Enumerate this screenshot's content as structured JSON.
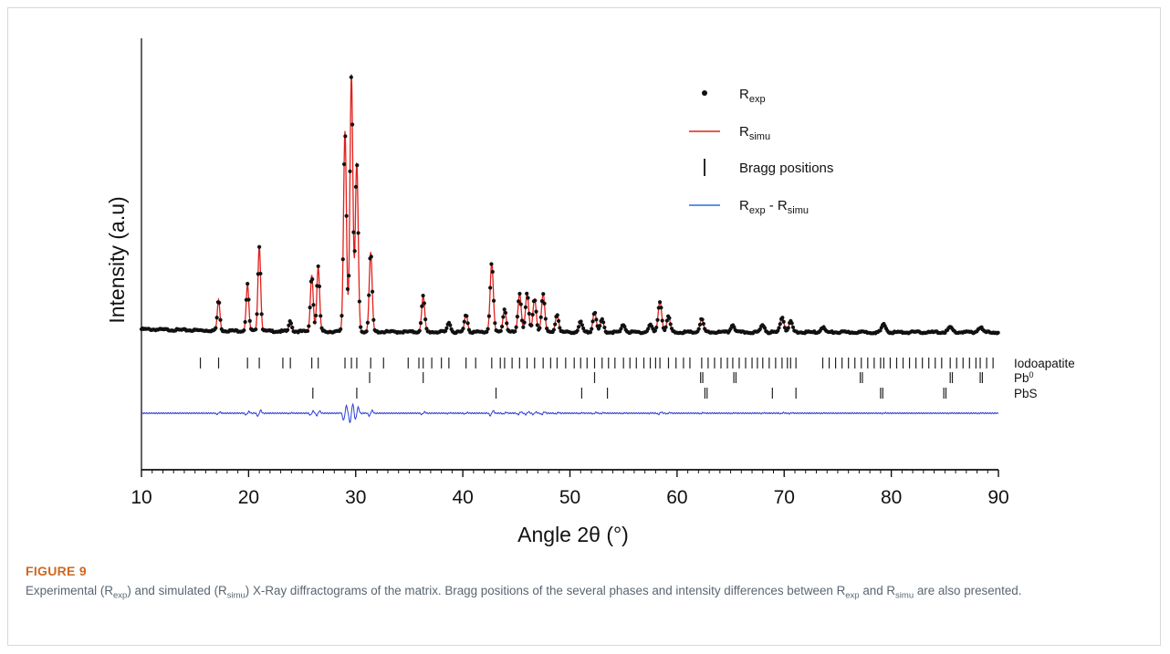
{
  "figure": {
    "label": "FIGURE 9",
    "caption_parts": {
      "p1": "Experimental (R",
      "s1": "exp",
      "p2": ") and simulated (R",
      "s2": "simu",
      "p3": ") X-Ray diffractograms of the matrix. Bragg positions of the several phases and intensity differences between R",
      "s3": "exp",
      "p4": " and R",
      "s4": "simu",
      "p5": " are also presented."
    }
  },
  "chart_data": {
    "type": "line",
    "xlabel": "Angle 2θ (°)",
    "ylabel": "Intensity (a.u)",
    "xlim": [
      10,
      90
    ],
    "x_ticks": [
      10,
      20,
      30,
      40,
      50,
      60,
      70,
      80,
      90
    ],
    "grid": false,
    "legend_position": "top-right",
    "legend": [
      {
        "symbol": "dot",
        "base": "R",
        "sub": "exp",
        "color": "#111111"
      },
      {
        "symbol": "line",
        "base": "R",
        "sub": "simu",
        "color": "#e0201b"
      },
      {
        "symbol": "bar",
        "base": "Bragg positions",
        "sub": "",
        "color": "#111111"
      },
      {
        "symbol": "line",
        "base": "R",
        "sub": "exp",
        "tail": " - R",
        "sub2": "simu",
        "color": "#2a6fd6"
      }
    ],
    "peaks": [
      {
        "x": 17.2,
        "h": 0.12
      },
      {
        "x": 19.9,
        "h": 0.18
      },
      {
        "x": 21.0,
        "h": 0.33
      },
      {
        "x": 23.9,
        "h": 0.04
      },
      {
        "x": 25.9,
        "h": 0.22
      },
      {
        "x": 26.5,
        "h": 0.25
      },
      {
        "x": 29.0,
        "h": 0.78
      },
      {
        "x": 29.6,
        "h": 1.0
      },
      {
        "x": 30.1,
        "h": 0.66
      },
      {
        "x": 31.4,
        "h": 0.31
      },
      {
        "x": 36.3,
        "h": 0.14
      },
      {
        "x": 38.7,
        "h": 0.04
      },
      {
        "x": 40.3,
        "h": 0.07
      },
      {
        "x": 42.7,
        "h": 0.27
      },
      {
        "x": 43.9,
        "h": 0.09
      },
      {
        "x": 45.3,
        "h": 0.15
      },
      {
        "x": 46.0,
        "h": 0.15
      },
      {
        "x": 46.7,
        "h": 0.13
      },
      {
        "x": 47.5,
        "h": 0.15
      },
      {
        "x": 48.8,
        "h": 0.07
      },
      {
        "x": 51.0,
        "h": 0.04
      },
      {
        "x": 52.3,
        "h": 0.08
      },
      {
        "x": 53.0,
        "h": 0.05
      },
      {
        "x": 55.0,
        "h": 0.03
      },
      {
        "x": 57.5,
        "h": 0.03
      },
      {
        "x": 58.4,
        "h": 0.12
      },
      {
        "x": 59.2,
        "h": 0.06
      },
      {
        "x": 62.3,
        "h": 0.05
      },
      {
        "x": 65.2,
        "h": 0.03
      },
      {
        "x": 68.0,
        "h": 0.03
      },
      {
        "x": 69.8,
        "h": 0.06
      },
      {
        "x": 70.6,
        "h": 0.04
      },
      {
        "x": 73.6,
        "h": 0.02
      },
      {
        "x": 79.3,
        "h": 0.03
      },
      {
        "x": 85.5,
        "h": 0.02
      },
      {
        "x": 88.3,
        "h": 0.02
      }
    ],
    "bragg_phases": [
      {
        "name": "Iodoapatite",
        "sup": "",
        "positions": [
          15.5,
          17.2,
          19.9,
          21.0,
          23.2,
          23.9,
          25.9,
          26.5,
          29.0,
          29.6,
          30.1,
          31.4,
          32.6,
          34.9,
          35.9,
          36.3,
          37.1,
          38.0,
          38.7,
          40.3,
          41.2,
          42.7,
          43.5,
          43.9,
          44.6,
          45.3,
          46.0,
          46.7,
          47.5,
          48.2,
          48.8,
          49.6,
          50.4,
          51.0,
          51.6,
          52.3,
          53.0,
          53.6,
          54.2,
          55.0,
          55.6,
          56.2,
          56.9,
          57.5,
          58.0,
          58.4,
          59.2,
          59.9,
          60.6,
          61.2,
          62.3,
          62.9,
          63.5,
          64.1,
          64.7,
          65.2,
          65.8,
          66.4,
          67.0,
          67.5,
          68.0,
          68.6,
          69.2,
          69.8,
          70.3,
          70.6,
          71.1,
          73.6,
          74.2,
          74.8,
          75.4,
          76.0,
          76.6,
          77.2,
          77.8,
          78.4,
          79.0,
          79.3,
          79.9,
          80.5,
          81.1,
          81.7,
          82.3,
          82.9,
          83.5,
          84.1,
          84.7,
          85.5,
          86.1,
          86.7,
          87.3,
          87.9,
          88.3,
          88.9,
          89.5
        ]
      },
      {
        "name": "Pb",
        "sup": "0",
        "positions": [
          31.3,
          36.3,
          52.3,
          62.2,
          62.4,
          65.3,
          65.5,
          77.1,
          77.3,
          85.5,
          85.7,
          88.3,
          88.5
        ]
      },
      {
        "name": "PbS",
        "sup": "",
        "positions": [
          26.0,
          30.1,
          43.1,
          51.1,
          53.5,
          62.6,
          62.8,
          68.9,
          71.1,
          79.0,
          79.2,
          84.9,
          85.1
        ]
      }
    ]
  }
}
